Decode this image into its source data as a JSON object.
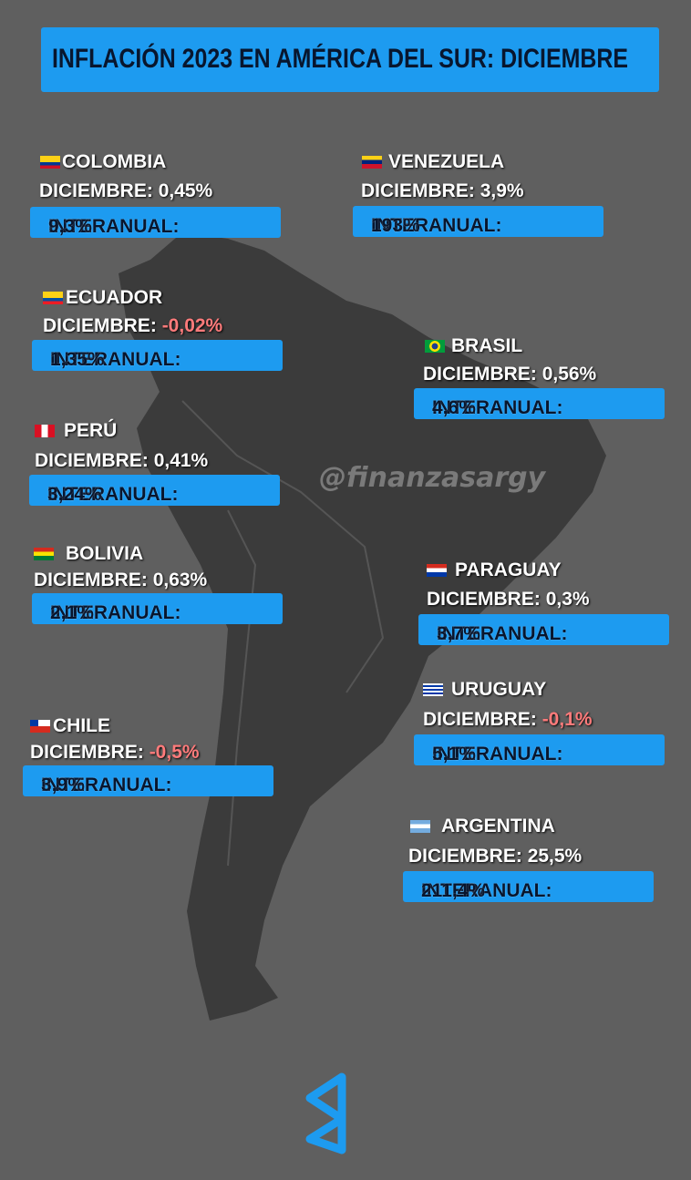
{
  "header": {
    "title": "INFLACIÓN 2023 EN AMÉRICA DEL SUR: DICIEMBRE"
  },
  "labels": {
    "monthly": "DICIEMBRE:",
    "annual": "INTERANUAL:"
  },
  "watermark": "@finanzasargy",
  "countries": [
    {
      "name": "COLOMBIA",
      "monthly": "0,45%",
      "annual": "9,3%"
    },
    {
      "name": "VENEZUELA",
      "monthly": "3,9%",
      "annual": "193%"
    },
    {
      "name": "ECUADOR",
      "monthly": "-0,02%",
      "annual": "1,35%"
    },
    {
      "name": "BRASIL",
      "monthly": "0,56%",
      "annual": "4,6%"
    },
    {
      "name": "PERÚ",
      "monthly": "0,41%",
      "annual": "3,24%"
    },
    {
      "name": "BOLIVIA",
      "monthly": "0,63%",
      "annual": "2,1%"
    },
    {
      "name": "PARAGUAY",
      "monthly": "0,3%",
      "annual": "3,7%"
    },
    {
      "name": "URUGUAY",
      "monthly": "-0,1%",
      "annual": "5,1%"
    },
    {
      "name": "CHILE",
      "monthly": "-0,5%",
      "annual": "3,9%"
    },
    {
      "name": "ARGENTINA",
      "monthly": "25,5%",
      "annual": "211,4%"
    }
  ]
}
